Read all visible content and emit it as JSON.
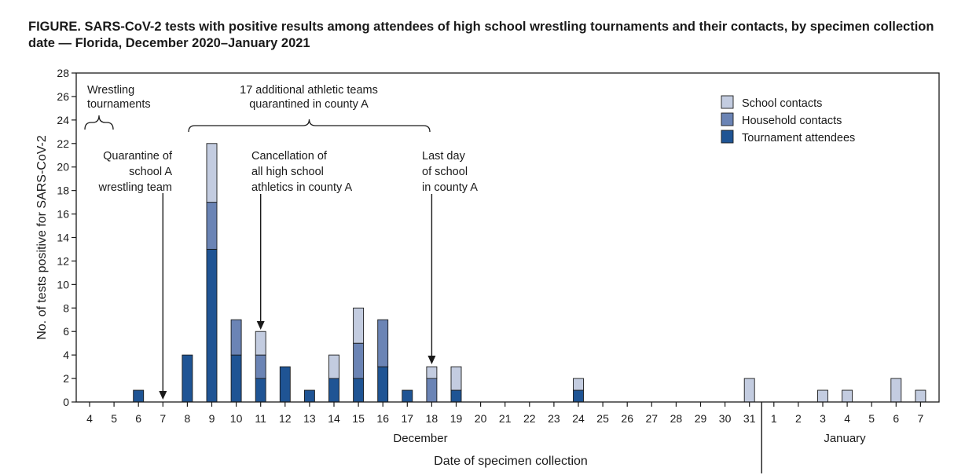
{
  "figure": {
    "title": "FIGURE. SARS-CoV-2 tests with positive results among attendees of high school wrestling tournaments and their contacts, by specimen collection date — Florida, December 2020–January 2021"
  },
  "chart_data": {
    "type": "bar",
    "stacked": true,
    "xlabel": "Date of specimen collection",
    "ylabel": "No. of tests positive for SARS-CoV-2",
    "ylim": [
      0,
      28
    ],
    "yticks": [
      0,
      2,
      4,
      6,
      8,
      10,
      12,
      14,
      16,
      18,
      20,
      22,
      24,
      26,
      28
    ],
    "categories": [
      "4",
      "5",
      "6",
      "7",
      "8",
      "9",
      "10",
      "11",
      "12",
      "13",
      "14",
      "15",
      "16",
      "17",
      "18",
      "19",
      "20",
      "21",
      "22",
      "23",
      "24",
      "25",
      "26",
      "27",
      "28",
      "29",
      "30",
      "31",
      "1",
      "2",
      "3",
      "4",
      "5",
      "6",
      "7"
    ],
    "month_labels": [
      "December",
      "January"
    ],
    "series": [
      {
        "name": "Tournament attendees",
        "color": "#1f5494",
        "values": [
          0,
          0,
          1,
          0,
          4,
          13,
          4,
          2,
          3,
          1,
          2,
          2,
          3,
          1,
          0,
          1,
          0,
          0,
          0,
          0,
          1,
          0,
          0,
          0,
          0,
          0,
          0,
          0,
          0,
          0,
          0,
          0,
          0,
          0,
          0
        ]
      },
      {
        "name": "Household contacts",
        "color": "#6b84b5",
        "values": [
          0,
          0,
          0,
          0,
          0,
          4,
          3,
          2,
          0,
          0,
          0,
          3,
          4,
          0,
          2,
          0,
          0,
          0,
          0,
          0,
          0,
          0,
          0,
          0,
          0,
          0,
          0,
          0,
          0,
          0,
          0,
          0,
          0,
          0,
          0
        ]
      },
      {
        "name": "School contacts",
        "color": "#c3cce0",
        "values": [
          0,
          0,
          0,
          0,
          0,
          5,
          0,
          2,
          0,
          0,
          2,
          3,
          0,
          0,
          1,
          2,
          0,
          0,
          0,
          0,
          1,
          0,
          0,
          0,
          0,
          0,
          0,
          2,
          0,
          0,
          1,
          1,
          0,
          2,
          1
        ]
      }
    ],
    "legend_position": "top-right",
    "annotations": {
      "wrestling": [
        "Wrestling",
        "tournaments"
      ],
      "teams": [
        "17 additional athletic teams",
        "quarantined in county A"
      ],
      "quarantine": [
        "Quarantine of",
        "school A",
        "wrestling team"
      ],
      "cancellation": [
        "Cancellation of",
        "all high school",
        "athletics in county A"
      ],
      "lastday": [
        "Last day",
        "of school",
        "in county A"
      ]
    }
  }
}
